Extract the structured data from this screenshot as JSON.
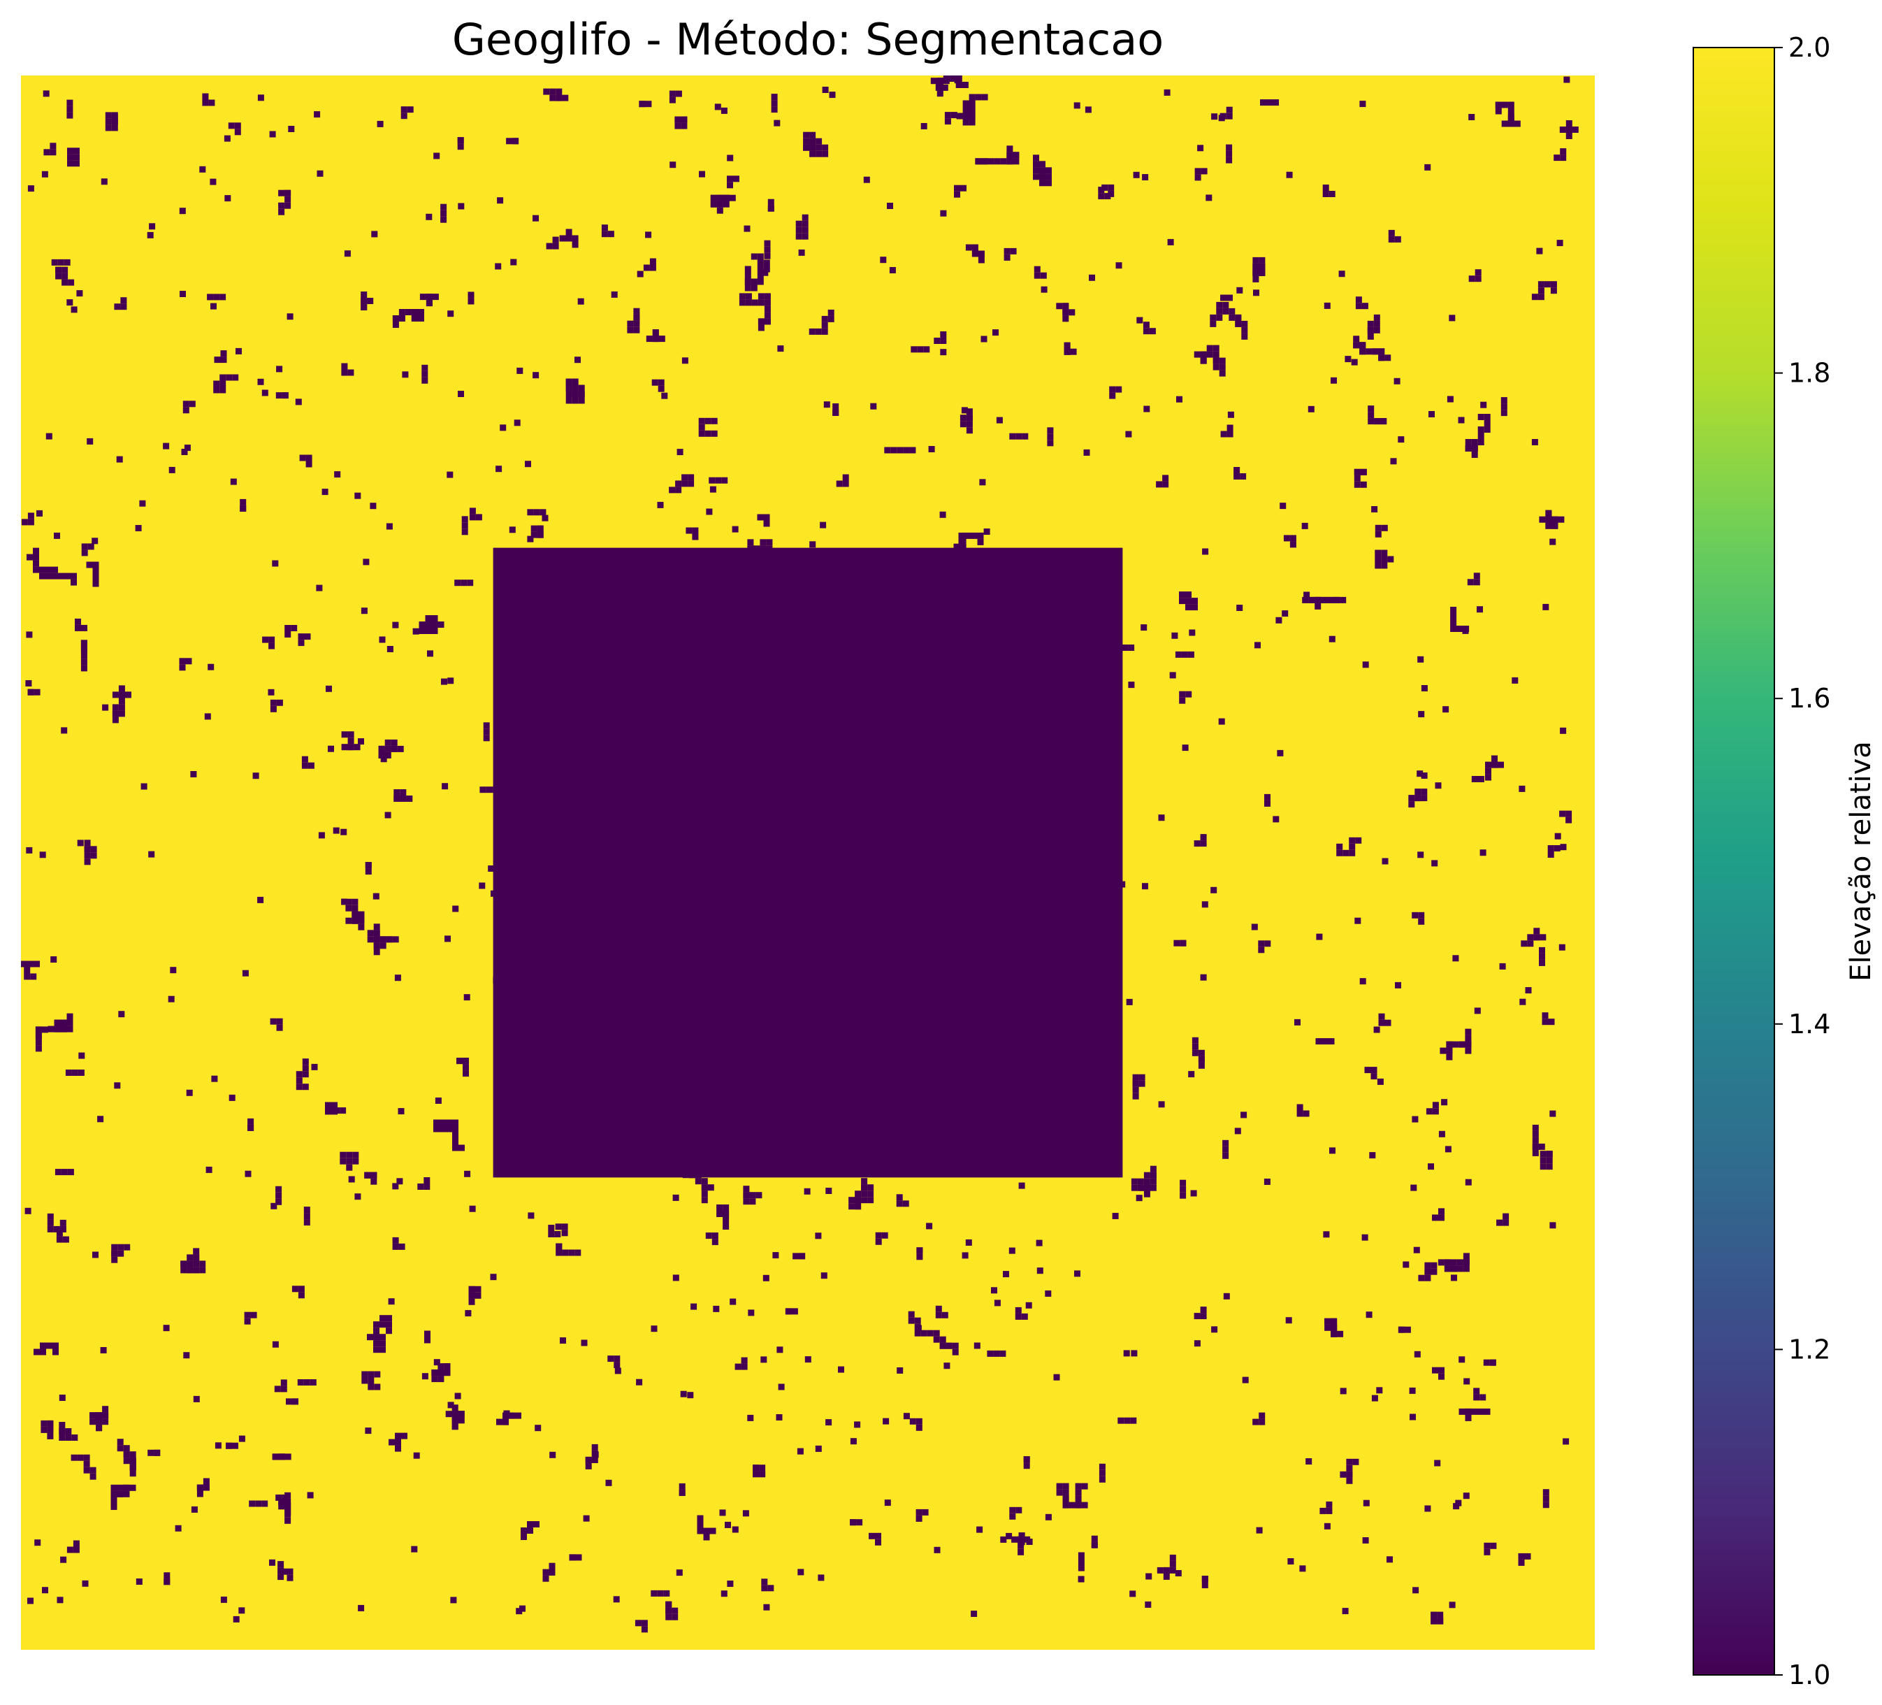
{
  "chart_data": {
    "type": "heatmap",
    "title": "Geoglifo - Método: Segmentacao",
    "colormap": "viridis",
    "value_range": [
      1.0,
      2.0
    ],
    "background_value": 2.0,
    "feature_value": 1.0,
    "central_feature": {
      "x_range": [
        0.3,
        0.7
      ],
      "y_range": [
        0.3,
        0.7
      ],
      "value": 1.0
    },
    "axes_visible": false,
    "colorbar": {
      "label": "Elevação relativa",
      "ticks": [
        "1.0",
        "1.2",
        "1.4",
        "1.6",
        "1.8",
        "2.0"
      ],
      "low_color": "#440154",
      "high_color": "#fde725"
    }
  }
}
